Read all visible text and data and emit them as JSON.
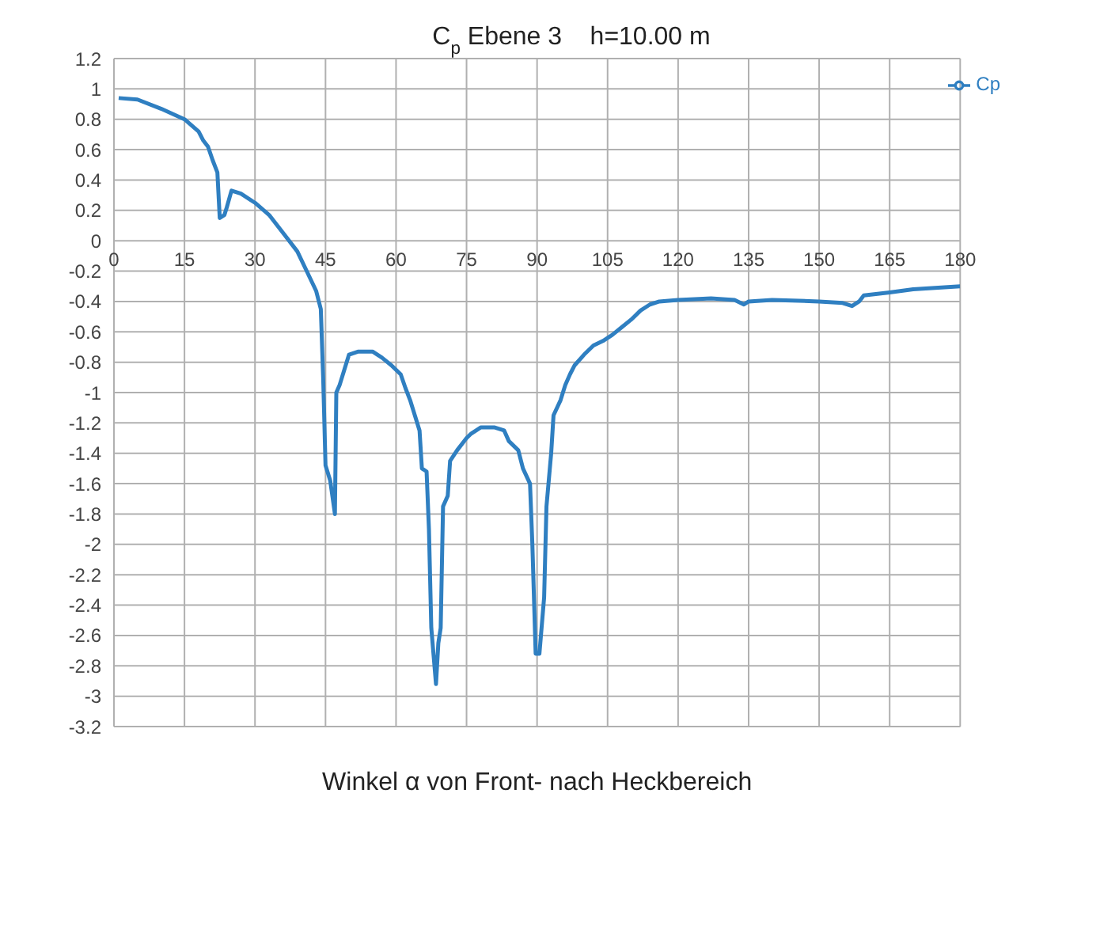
{
  "chart_data": {
    "type": "line",
    "title": "C$_{p}$ Ebene 3    h=10.00 m",
    "xlabel": "Winkel α von Front- nach Heckbereich",
    "x": [
      1,
      5,
      10,
      15,
      18,
      19,
      20,
      21,
      22,
      22.5,
      23.5,
      24,
      25,
      27,
      30,
      33,
      36,
      39,
      41,
      43,
      44,
      44.5,
      45,
      46,
      47,
      47.3,
      48,
      49,
      50,
      52,
      55,
      57,
      59,
      61,
      62,
      63,
      64,
      65,
      65.5,
      66.5,
      67,
      67.5,
      68.5,
      69,
      69.5,
      70,
      71,
      71.5,
      73,
      75,
      76,
      78,
      81,
      83,
      84,
      86,
      87,
      88.5,
      89,
      89.7,
      90.5,
      91.5,
      92,
      93,
      93.5,
      95,
      96,
      97,
      98,
      100,
      102,
      104,
      106,
      108,
      110,
      112,
      114,
      116,
      120,
      127,
      132,
      134,
      135,
      140,
      150,
      155,
      157,
      158.5,
      159.5,
      165,
      170,
      180
    ],
    "series": [
      {
        "name": "Cp",
        "color": "#2f7fc1",
        "values": [
          0.94,
          0.93,
          0.87,
          0.8,
          0.72,
          0.66,
          0.62,
          0.53,
          0.45,
          0.15,
          0.17,
          0.22,
          0.33,
          0.31,
          0.25,
          0.17,
          0.05,
          -0.07,
          -0.2,
          -0.33,
          -0.45,
          -0.9,
          -1.48,
          -1.58,
          -1.8,
          -1.0,
          -0.95,
          -0.85,
          -0.75,
          -0.73,
          -0.73,
          -0.77,
          -0.82,
          -0.88,
          -0.97,
          -1.05,
          -1.15,
          -1.25,
          -1.5,
          -1.52,
          -1.9,
          -2.55,
          -2.92,
          -2.65,
          -2.55,
          -1.75,
          -1.68,
          -1.45,
          -1.38,
          -1.3,
          -1.27,
          -1.23,
          -1.23,
          -1.25,
          -1.32,
          -1.38,
          -1.5,
          -1.6,
          -2.0,
          -2.72,
          -2.72,
          -2.35,
          -1.75,
          -1.4,
          -1.15,
          -1.05,
          -0.95,
          -0.88,
          -0.82,
          -0.75,
          -0.69,
          -0.66,
          -0.62,
          -0.57,
          -0.52,
          -0.46,
          -0.42,
          -0.4,
          -0.39,
          -0.38,
          -0.39,
          -0.42,
          -0.4,
          -0.39,
          -0.4,
          -0.41,
          -0.43,
          -0.4,
          -0.36,
          -0.34,
          -0.32,
          -0.3
        ]
      }
    ],
    "xlim": [
      0,
      180
    ],
    "xticks": [
      0,
      15,
      30,
      45,
      60,
      75,
      90,
      105,
      120,
      135,
      150,
      165,
      180
    ],
    "ylim": [
      -3.2,
      1.2
    ],
    "yticks": [
      1.2,
      1,
      0.8,
      0.6,
      0.4,
      0.2,
      0,
      -0.2,
      -0.4,
      -0.6,
      -0.8,
      -1,
      -1.2,
      -1.4,
      -1.6,
      -1.8,
      -2,
      -2.2,
      -2.4,
      -2.6,
      -2.8,
      -3,
      -3.2
    ],
    "grid": true,
    "legend": "top right",
    "marker": "none",
    "line_style": "solid"
  }
}
